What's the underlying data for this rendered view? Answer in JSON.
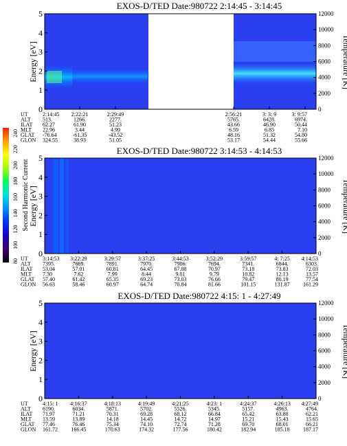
{
  "colorbar": {
    "label": "Second Harmonic Current",
    "ticks": [
      "240",
      "220",
      "200",
      "180",
      "160",
      "140",
      "120",
      "100",
      "80"
    ],
    "stops": [
      "#000000",
      "#3a0070",
      "#1a00d0",
      "#0030ff",
      "#0090ff",
      "#00e0e0",
      "#00ff60",
      "#a0ff00",
      "#ffff00",
      "#ffa000",
      "#ff2000"
    ]
  },
  "chart_data": [
    {
      "type": "heatmap",
      "title": "EXOS-D/TED    Date:980722   2:14:45 - 3:14:45",
      "ylabel": "Energy [eV]",
      "y2label": "Temperature [K]",
      "ylim": [
        0,
        5
      ],
      "y2lim": [
        0,
        12000
      ],
      "yticks": [
        "0",
        "1",
        "2",
        "3",
        "4",
        "5"
      ],
      "y2ticks": [
        "0",
        "2000",
        "4000",
        "6000",
        "8000",
        "10000",
        "12000"
      ],
      "data_gap": true,
      "orbit_table": {
        "row_labels": [
          "UT",
          "ALT",
          "ILAT",
          "MLT",
          "GLAT",
          "GLON"
        ],
        "columns": [
          {
            "ut": "2:14:45",
            "alt": "513.",
            "ilat": "62.27",
            "mlt": "22.96",
            "glat": "-76.64",
            "glon": "324.55"
          },
          {
            "ut": "2:22:21",
            "alt": "1266.",
            "ilat": "61.90",
            "mlt": "3.44",
            "glat": "-61.35",
            "glon": "38.93"
          },
          {
            "ut": "2:29:49",
            "alt": "2277.",
            "ilat": "51.23",
            "mlt": "4.99",
            "glat": "-43.52",
            "glon": "51.05"
          },
          {
            "ut": "2:56:21",
            "alt": "5765.",
            "ilat": "43.66",
            "mlt": "6.59",
            "glat": "48.16",
            "glon": "53.17"
          },
          {
            "ut": "3: 3: 9",
            "alt": "6428.",
            "ilat": "46.90",
            "mlt": "6.85",
            "glat": "51.32",
            "glon": "54.44"
          },
          {
            "ut": "3: 9:57",
            "alt": "6974.",
            "ilat": "50.44",
            "mlt": "7.10",
            "glat": "54.80",
            "glon": "55.66"
          }
        ]
      }
    },
    {
      "type": "heatmap",
      "title": "EXOS-D/TED    Date:980722   3:14:53 - 4:14:53",
      "ylabel": "Energy [eV]",
      "y2label": "Temperature [K]",
      "ylim": [
        0,
        5
      ],
      "y2lim": [
        0,
        12000
      ],
      "yticks": [
        "0",
        "1",
        "2",
        "3",
        "4",
        "5"
      ],
      "y2ticks": [
        "0",
        "2000",
        "4000",
        "6000",
        "8000",
        "10000",
        "12000"
      ],
      "orbit_table": {
        "row_labels": [
          "UT",
          "ALT",
          "ILAT",
          "MLT",
          "GLAT",
          "GLON"
        ],
        "columns": [
          {
            "ut": "3:14:53",
            "alt": "7395.",
            "ilat": "53.04",
            "mlt": "7.30",
            "glat": "57.40",
            "glon": "56.63"
          },
          {
            "ut": "3:22:29",
            "alt": "7669.",
            "ilat": "57.01",
            "mlt": "7.62",
            "glat": "61.42",
            "glon": "58.46"
          },
          {
            "ut": "3:29:57",
            "alt": "7891.",
            "ilat": "60.81",
            "mlt": "7.99",
            "glat": "65.35",
            "glon": "60.97"
          },
          {
            "ut": "3:37:25",
            "alt": "7970.",
            "ilat": "64.45",
            "mlt": "8.44",
            "glat": "69.23",
            "glon": "64.74"
          },
          {
            "ut": "3:44:53",
            "alt": "7906.",
            "ilat": "67.88",
            "mlt": "9.01",
            "glat": "73.03",
            "glon": "70.84"
          },
          {
            "ut": "3:52:29",
            "alt": "7694.",
            "ilat": "70.97",
            "mlt": "9.79",
            "glat": "76.66",
            "glon": "81.66"
          },
          {
            "ut": "3:59:57",
            "alt": "7341.",
            "ilat": "73.18",
            "mlt": "10.82",
            "glat": "79.47",
            "glon": "101.15"
          },
          {
            "ut": "4: 7:25",
            "alt": "6844.",
            "ilat": "73.83",
            "mlt": "12.13",
            "glat": "80.19",
            "glon": "131.87"
          },
          {
            "ut": "4:14:53",
            "alt": "6303.",
            "ilat": "72.03",
            "mlt": "13.57",
            "glat": "77.54",
            "glon": "161.29"
          }
        ]
      }
    },
    {
      "type": "heatmap",
      "title": "EXOS-D/TED    Date:980722   4:15: 1 - 4:27:49",
      "ylabel": "Energy [eV]",
      "y2label": "Temperature [K]",
      "ylim": [
        0,
        5
      ],
      "y2lim": [
        0,
        12000
      ],
      "yticks": [
        "0",
        "1",
        "2",
        "3",
        "4",
        "5"
      ],
      "y2ticks": [
        "0",
        "2000",
        "4000",
        "6000",
        "8000",
        "10000",
        "12000"
      ],
      "orbit_table": {
        "row_labels": [
          "UT",
          "ALT",
          "ILAT",
          "MLT",
          "GLAT",
          "GLON"
        ],
        "columns": [
          {
            "ut": "4:15: 1",
            "alt": "6190.",
            "ilat": "71.97",
            "mlt": "13.59",
            "glat": "77.46",
            "glon": "161.72"
          },
          {
            "ut": "4:16:37",
            "alt": "6034.",
            "ilat": "71.21",
            "mlt": "13.89",
            "glat": "76.46",
            "glon": "166.45"
          },
          {
            "ut": "4:18:13",
            "alt": "5871.",
            "ilat": "70.31",
            "mlt": "14.18",
            "glat": "75.34",
            "glon": "170.63"
          },
          {
            "ut": "4:19:49",
            "alt": "5702.",
            "ilat": "69.28",
            "mlt": "14.45",
            "glat": "74.10",
            "glon": "174.32"
          },
          {
            "ut": "4:21:25",
            "alt": "5526.",
            "ilat": "68.12",
            "mlt": "14.72",
            "glat": "72.74",
            "glon": "177.56"
          },
          {
            "ut": "4:23: 1",
            "alt": "5345.",
            "ilat": "66.84",
            "mlt": "14.97",
            "glat": "71.28",
            "glon": "180.42"
          },
          {
            "ut": "4:24:37",
            "alt": "5157.",
            "ilat": "65.42",
            "mlt": "15.21",
            "glat": "69.70",
            "glon": "182.94"
          },
          {
            "ut": "4:26:13",
            "alt": "4963.",
            "ilat": "63.88",
            "mlt": "15.43",
            "glat": "68.01",
            "glon": "185.18"
          },
          {
            "ut": "4:27:49",
            "alt": "4764.",
            "ilat": "62.21",
            "mlt": "15.65",
            "glat": "66.21",
            "glon": "187.17"
          }
        ]
      }
    }
  ]
}
